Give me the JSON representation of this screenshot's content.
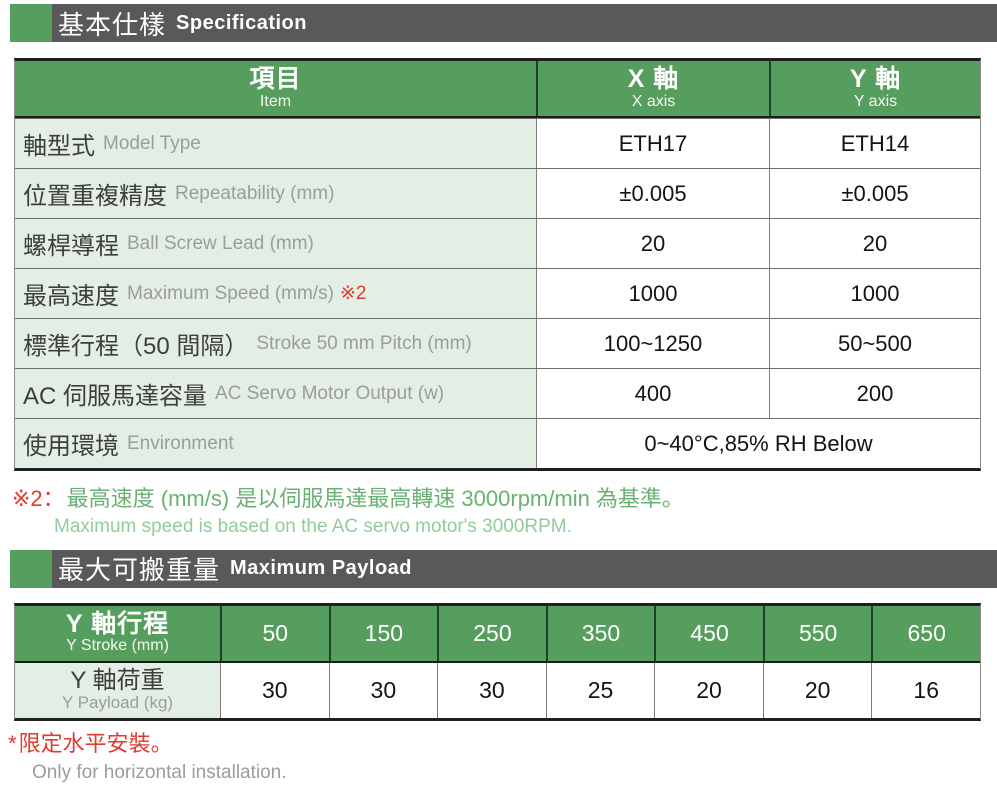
{
  "sections": [
    {
      "title_zh": "基本仕樣",
      "title_en": "Specification"
    },
    {
      "title_zh": "最大可搬重量",
      "title_en": "Maximum Payload"
    }
  ],
  "spec_table": {
    "header": {
      "item_zh": "項目",
      "item_en": "Item",
      "x_zh": "X 軸",
      "x_en": "X axis",
      "y_zh": "Y 軸",
      "y_en": "Y axis"
    },
    "rows": [
      {
        "zh": "軸型式",
        "en": "Model Type",
        "x": "ETH17",
        "y": "ETH14"
      },
      {
        "zh": "位置重複精度",
        "en": "Repeatability (mm)",
        "x": "±0.005",
        "y": "±0.005"
      },
      {
        "zh": "螺桿導程",
        "en": "Ball Screw Lead (mm)",
        "x": "20",
        "y": "20"
      },
      {
        "zh": "最高速度",
        "en": "Maximum Speed (mm/s)",
        "note": "※2",
        "x": "1000",
        "y": "1000"
      },
      {
        "zh": "標準行程（50 間隔）",
        "en": "Stroke 50 mm Pitch (mm)",
        "x": "100~1250",
        "y": "50~500"
      },
      {
        "zh": "AC 伺服馬達容量",
        "en": "AC Servo Motor Output (w)",
        "x": "400",
        "y": "200"
      },
      {
        "zh": "使用環境",
        "en": "Environment",
        "merged": "0~40°C,85% RH Below"
      }
    ]
  },
  "footnote_speed": {
    "marker": "※2：",
    "zh": "最高速度 (mm/s) 是以伺服馬達最高轉速 3000rpm/min 為基準。",
    "en": "Maximum speed is based on the AC servo motor's 3000RPM."
  },
  "payload_table": {
    "stroke_label_zh": "Y 軸行程",
    "stroke_label_en": "Y Stroke (mm)",
    "payload_label_zh": "Y 軸荷重",
    "payload_label_en": "Y Payload (kg)",
    "strokes": [
      "50",
      "150",
      "250",
      "350",
      "450",
      "550",
      "650"
    ],
    "payloads": [
      "30",
      "30",
      "30",
      "25",
      "20",
      "20",
      "16"
    ]
  },
  "footnote_install": {
    "marker": "*",
    "zh": "限定水平安裝。",
    "en": "Only for horizontal installation."
  },
  "colors": {
    "green": "#569e5e",
    "bar": "#59595b",
    "light_green": "#e3efe4",
    "red": "#e23a2e",
    "note_green": "#6ab173",
    "note_green_light": "#92cb9e"
  }
}
